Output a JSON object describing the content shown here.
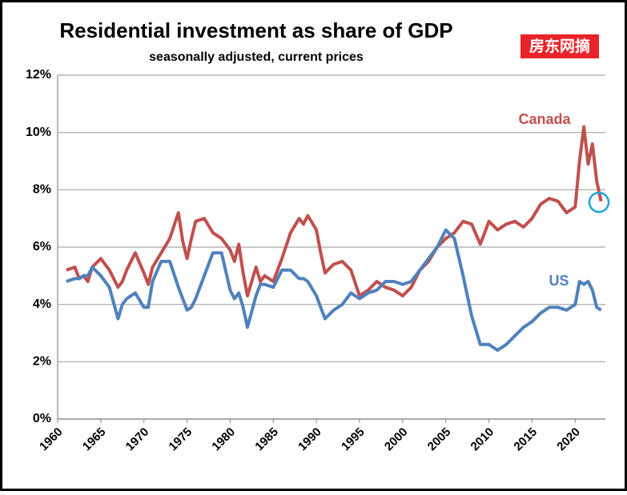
{
  "chart_data": {
    "type": "line",
    "title": "Residential investment as share of GDP",
    "subtitle": "seasonally adjusted, current prices",
    "watermark": "房东网摘",
    "x": [
      1961,
      1962,
      1962.5,
      1963,
      1963.5,
      1964,
      1965,
      1965.5,
      1966,
      1967,
      1967.5,
      1968,
      1969,
      1970,
      1970.5,
      1971,
      1972,
      1973,
      1974,
      1974.5,
      1975,
      1975.5,
      1976,
      1977,
      1978,
      1979,
      1980,
      1980.5,
      1981,
      1981.5,
      1982,
      1983,
      1983.5,
      1984,
      1985,
      1986,
      1987,
      1988,
      1988.5,
      1989,
      1990,
      1990.5,
      1991,
      1992,
      1993,
      1994,
      1995,
      1996,
      1997,
      1998,
      1999,
      2000,
      2001,
      2002,
      2003,
      2004,
      2005,
      2006,
      2007,
      2008,
      2009,
      2010,
      2011,
      2012,
      2013,
      2014,
      2015,
      2016,
      2017,
      2018,
      2019,
      2020,
      2020.5,
      2021,
      2021.5,
      2022,
      2022.5,
      2023
    ],
    "series": [
      {
        "name": "Canada",
        "color": "#c0504d",
        "values": [
          5.2,
          5.3,
          4.9,
          5.0,
          4.8,
          5.3,
          5.6,
          5.4,
          5.2,
          4.6,
          4.8,
          5.2,
          5.8,
          5.1,
          4.7,
          5.3,
          5.8,
          6.3,
          7.2,
          6.2,
          5.6,
          6.3,
          6.9,
          7.0,
          6.5,
          6.3,
          5.9,
          5.5,
          6.1,
          5.1,
          4.3,
          5.3,
          4.8,
          5.0,
          4.8,
          5.6,
          6.5,
          7.0,
          6.8,
          7.1,
          6.6,
          5.8,
          5.1,
          5.4,
          5.5,
          5.2,
          4.3,
          4.5,
          4.8,
          4.6,
          4.5,
          4.3,
          4.6,
          5.2,
          5.5,
          6.0,
          6.3,
          6.5,
          6.9,
          6.8,
          6.1,
          6.9,
          6.6,
          6.8,
          6.9,
          6.7,
          7.0,
          7.5,
          7.7,
          7.6,
          7.2,
          7.4,
          9.0,
          10.2,
          8.9,
          9.6,
          8.3,
          7.6
        ]
      },
      {
        "name": "US",
        "color": "#4f81bd",
        "values": [
          4.8,
          4.9,
          4.9,
          5.0,
          5.0,
          5.3,
          5.0,
          4.8,
          4.6,
          3.5,
          4.0,
          4.2,
          4.4,
          3.9,
          3.9,
          4.8,
          5.5,
          5.5,
          4.6,
          4.2,
          3.8,
          3.9,
          4.2,
          5.0,
          5.8,
          5.8,
          4.5,
          4.2,
          4.4,
          3.9,
          3.2,
          4.3,
          4.7,
          4.7,
          4.6,
          5.2,
          5.2,
          4.9,
          4.9,
          4.8,
          4.3,
          3.9,
          3.5,
          3.8,
          4.0,
          4.4,
          4.2,
          4.4,
          4.5,
          4.8,
          4.8,
          4.7,
          4.8,
          5.2,
          5.6,
          6.0,
          6.6,
          6.3,
          5.0,
          3.6,
          2.6,
          2.6,
          2.4,
          2.6,
          2.9,
          3.2,
          3.4,
          3.7,
          3.9,
          3.9,
          3.8,
          4.0,
          4.8,
          4.7,
          4.8,
          4.5,
          3.9,
          3.8
        ]
      }
    ],
    "xlim": [
      1960,
      2023.5
    ],
    "xticks": [
      1960,
      1965,
      1970,
      1975,
      1980,
      1985,
      1990,
      1995,
      2000,
      2005,
      2010,
      2015,
      2020
    ],
    "ylim": [
      0,
      12
    ],
    "yticks": [
      {
        "value": 0,
        "label": "0%"
      },
      {
        "value": 2,
        "label": "2%"
      },
      {
        "value": 4,
        "label": "4%"
      },
      {
        "value": 6,
        "label": "6%"
      },
      {
        "value": 8,
        "label": "8%"
      },
      {
        "value": 10,
        "label": "10%"
      },
      {
        "value": 12,
        "label": "12%"
      }
    ],
    "grid": true
  }
}
